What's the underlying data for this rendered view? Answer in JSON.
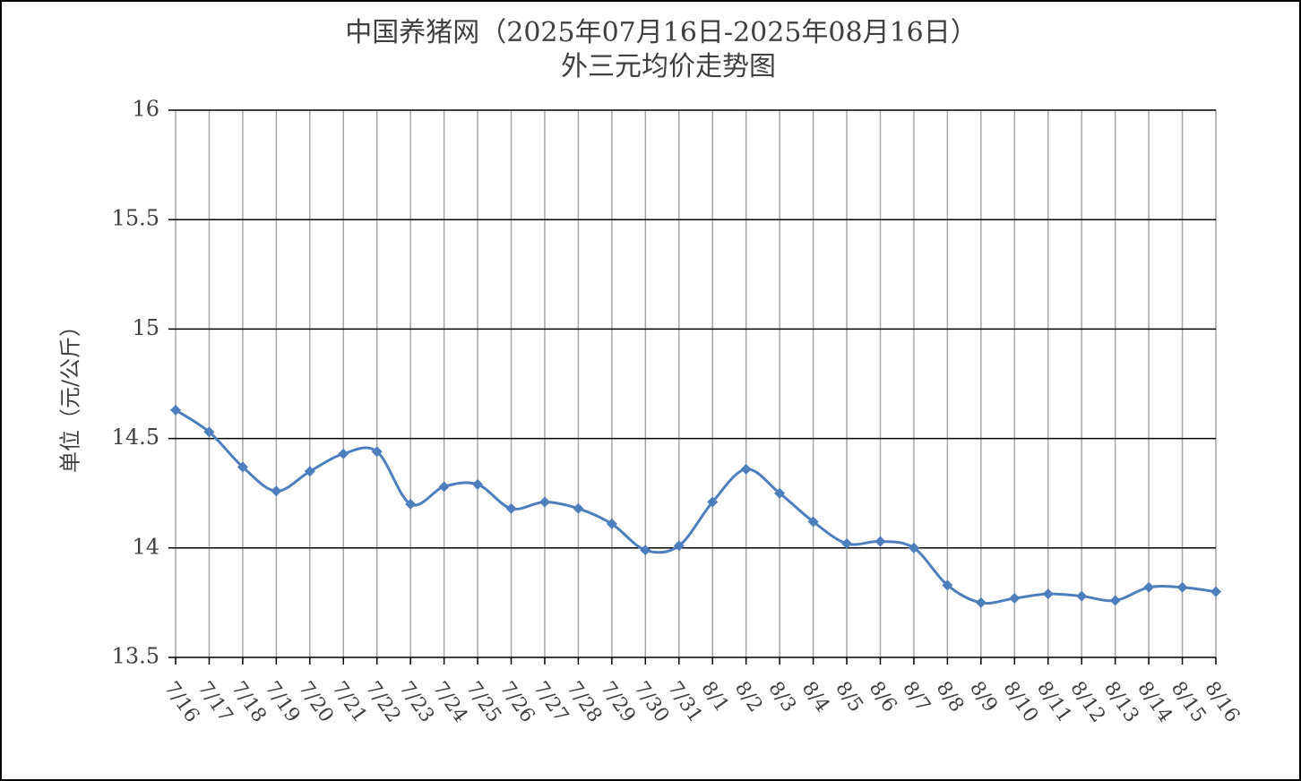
{
  "chart_data": {
    "type": "line",
    "title": "中国养猪网（2025年07月16日-2025年08月16日）",
    "subtitle": "外三元均价走势图",
    "y_label": "单位（元/公斤）",
    "categories": [
      "7/16",
      "7/17",
      "7/18",
      "7/19",
      "7/20",
      "7/21",
      "7/22",
      "7/23",
      "7/24",
      "7/25",
      "7/26",
      "7/27",
      "7/28",
      "7/29",
      "7/30",
      "7/31",
      "8/1",
      "8/2",
      "8/3",
      "8/4",
      "8/5",
      "8/6",
      "8/7",
      "8/8",
      "8/9",
      "8/10",
      "8/11",
      "8/12",
      "8/13",
      "8/14",
      "8/15",
      "8/16"
    ],
    "series": [
      {
        "color": "#4f7ebd",
        "values": [
          14.63,
          14.53,
          14.37,
          14.26,
          14.35,
          14.43,
          14.44,
          14.2,
          14.28,
          14.29,
          14.18,
          14.21,
          14.18,
          14.11,
          13.99,
          14.01,
          14.21,
          14.36,
          14.25,
          14.12,
          14.02,
          14.03,
          14.0,
          13.83,
          13.75,
          13.77,
          13.79,
          13.78,
          13.76,
          13.82,
          13.82,
          13.8
        ]
      }
    ],
    "ylim": [
      13.5,
      16
    ],
    "yticks": [
      13.5,
      14,
      14.5,
      15,
      15.5,
      16
    ],
    "grid": true,
    "smooth": true
  }
}
